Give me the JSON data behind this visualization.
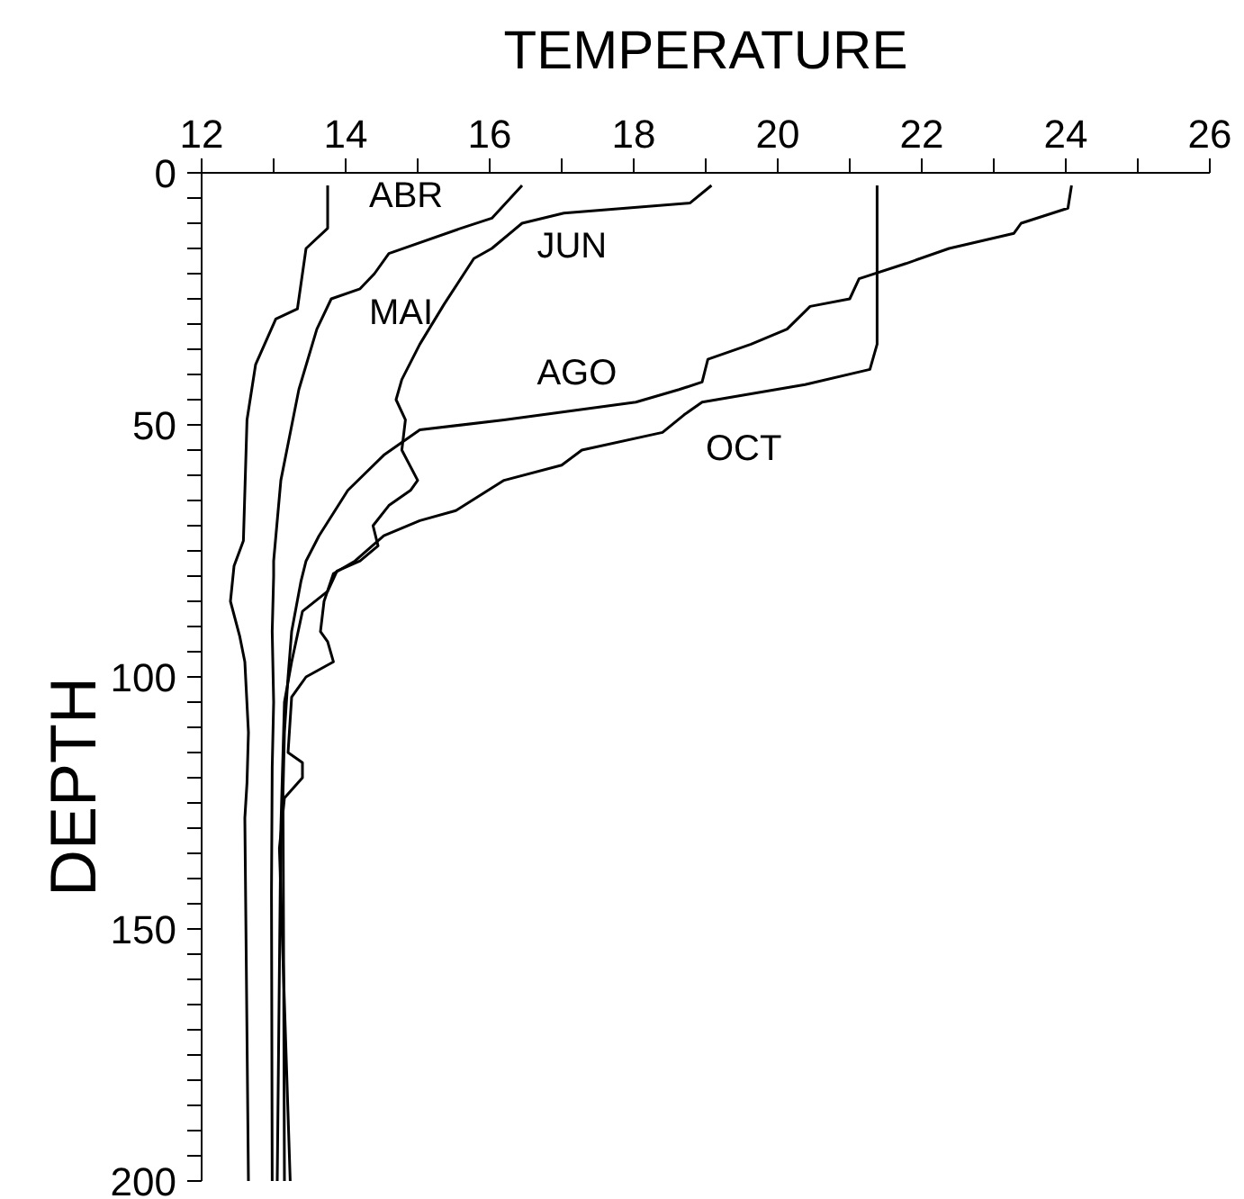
{
  "chart_data": {
    "type": "line",
    "xlabel": "TEMPERATURE",
    "ylabel": "DEPTH",
    "xlim": [
      12,
      26
    ],
    "ylim": [
      200,
      0
    ],
    "xticks": [
      12,
      {
        "value": 13,
        "label": null
      },
      14,
      {
        "value": 15,
        "label": null
      },
      16,
      {
        "value": 17,
        "label": null
      },
      18,
      {
        "value": 19,
        "label": null
      },
      20,
      {
        "value": 21,
        "label": null
      },
      22,
      {
        "value": 23,
        "label": null
      },
      24,
      {
        "value": 25,
        "label": null
      },
      26
    ],
    "yticks": [
      0,
      {
        "value": 5,
        "label": null
      },
      {
        "value": 10,
        "label": null
      },
      {
        "value": 15,
        "label": null
      },
      {
        "value": 20,
        "label": null
      },
      {
        "value": 25,
        "label": null
      },
      {
        "value": 30,
        "label": null
      },
      {
        "value": 35,
        "label": null
      },
      {
        "value": 40,
        "label": null
      },
      {
        "value": 45,
        "label": null
      },
      50,
      {
        "value": 55,
        "label": null
      },
      {
        "value": 60,
        "label": null
      },
      {
        "value": 65,
        "label": null
      },
      {
        "value": 70,
        "label": null
      },
      {
        "value": 75,
        "label": null
      },
      {
        "value": 80,
        "label": null
      },
      {
        "value": 85,
        "label": null
      },
      {
        "value": 90,
        "label": null
      },
      {
        "value": 95,
        "label": null
      },
      100,
      {
        "value": 105,
        "label": null
      },
      {
        "value": 110,
        "label": null
      },
      {
        "value": 115,
        "label": null
      },
      {
        "value": 120,
        "label": null
      },
      {
        "value": 125,
        "label": null
      },
      {
        "value": 130,
        "label": null
      },
      {
        "value": 135,
        "label": null
      },
      {
        "value": 140,
        "label": null
      },
      {
        "value": 145,
        "label": null
      },
      150,
      {
        "value": 155,
        "label": null
      },
      {
        "value": 160,
        "label": null
      },
      {
        "value": 165,
        "label": null
      },
      {
        "value": 170,
        "label": null
      },
      {
        "value": 175,
        "label": null
      },
      {
        "value": 180,
        "label": null
      },
      {
        "value": 185,
        "label": null
      },
      {
        "value": 190,
        "label": null
      },
      {
        "value": 195,
        "label": null
      },
      200
    ],
    "grid": false,
    "legend": false,
    "marker": "none",
    "line_style": "solid",
    "series": [
      {
        "name": "ABR",
        "color": "#000000",
        "x": [
          13.75,
          13.75,
          13.45,
          13.33,
          13.03,
          12.75,
          12.63,
          12.58,
          12.45,
          12.4,
          12.53,
          12.6,
          12.65,
          12.63,
          12.6,
          12.65
        ],
        "values": [
          2.5,
          11,
          15,
          27,
          29,
          38,
          49,
          73,
          78,
          85,
          92,
          97,
          111,
          121,
          128,
          200
        ]
      },
      {
        "name": "MAI",
        "color": "#000000",
        "x": [
          16.45,
          16.03,
          15.6,
          14.6,
          14.4,
          14.2,
          13.8,
          13.6,
          13.35,
          13.1,
          13.0,
          13.0,
          12.98,
          13.0,
          12.98,
          12.97,
          12.98
        ],
        "values": [
          2.5,
          9,
          11,
          16,
          20,
          23,
          25,
          31,
          43,
          61,
          77,
          80,
          91,
          105,
          118,
          143,
          200
        ]
      },
      {
        "name": "JUN",
        "color": "#000000",
        "x": [
          19.08,
          18.78,
          17.03,
          16.45,
          16.03,
          15.78,
          15.37,
          15.03,
          14.78,
          14.7,
          14.83,
          14.78,
          15.0,
          14.9,
          14.6,
          14.38,
          14.45,
          14.2,
          13.88,
          13.75,
          13.4,
          13.25,
          13.15,
          13.1,
          13.05
        ],
        "values": [
          2.5,
          6,
          8,
          10,
          15,
          17,
          26,
          34,
          41,
          45,
          49,
          55,
          61,
          63,
          66,
          70,
          74,
          77,
          79,
          83,
          87,
          97,
          105,
          130,
          200
        ]
      },
      {
        "name": "AGO",
        "color": "#000000",
        "x": [
          24.08,
          24.03,
          23.38,
          23.28,
          22.38,
          21.78,
          21.13,
          21.0,
          20.45,
          20.13,
          19.63,
          19.03,
          18.95,
          18.63,
          18.03,
          16.2,
          15.03,
          14.53,
          14.03,
          13.63,
          13.45,
          13.38,
          13.25,
          13.2,
          13.15,
          13.13,
          13.15
        ],
        "values": [
          2.5,
          7,
          10,
          12,
          15,
          18,
          21,
          25,
          26.5,
          31,
          34,
          37,
          41.5,
          43,
          45.5,
          49,
          51,
          56,
          63,
          72,
          77,
          81,
          91,
          100,
          111,
          123,
          200
        ]
      },
      {
        "name": "OCT",
        "color": "#000000",
        "x": [
          21.38,
          21.38,
          21.28,
          20.38,
          18.95,
          18.7,
          18.4,
          17.28,
          17.0,
          16.2,
          15.53,
          15.03,
          14.53,
          14.13,
          13.83,
          13.7,
          13.65,
          13.75,
          13.83,
          13.45,
          13.25,
          13.2,
          13.4,
          13.4,
          13.15,
          13.08,
          13.23
        ],
        "values": [
          2.5,
          34,
          39,
          42,
          45.5,
          48,
          51.5,
          55,
          58,
          61,
          67,
          69,
          72,
          77,
          79.5,
          85,
          91,
          93,
          97,
          100,
          104,
          115,
          117,
          120,
          124,
          134,
          200
        ]
      }
    ]
  }
}
